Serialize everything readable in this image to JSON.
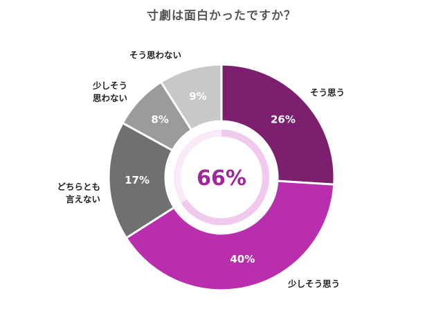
{
  "chart_data": {
    "type": "pie",
    "title": "寸劇は面白かったですか？",
    "categories": [
      "そう思う",
      "少しそう思う",
      "どちらとも言えない",
      "少しそう思わない",
      "そう思わない"
    ],
    "values": [
      26,
      40,
      17,
      8,
      9
    ],
    "value_labels": [
      "26%",
      "40%",
      "17%",
      "8%",
      "9%"
    ],
    "colors": [
      "#7b1f6e",
      "#b82ead",
      "#707070",
      "#9b9b9b",
      "#c8c8c8"
    ],
    "center_value": 66,
    "center_label": "66%",
    "center_ring_color": "#f1c9ec",
    "category_label_lines": [
      [
        "そう思う"
      ],
      [
        "少しそう思う"
      ],
      [
        "どちらとも",
        "言えない"
      ],
      [
        "少しそう",
        "思わない"
      ],
      [
        "そう思わない"
      ]
    ]
  }
}
